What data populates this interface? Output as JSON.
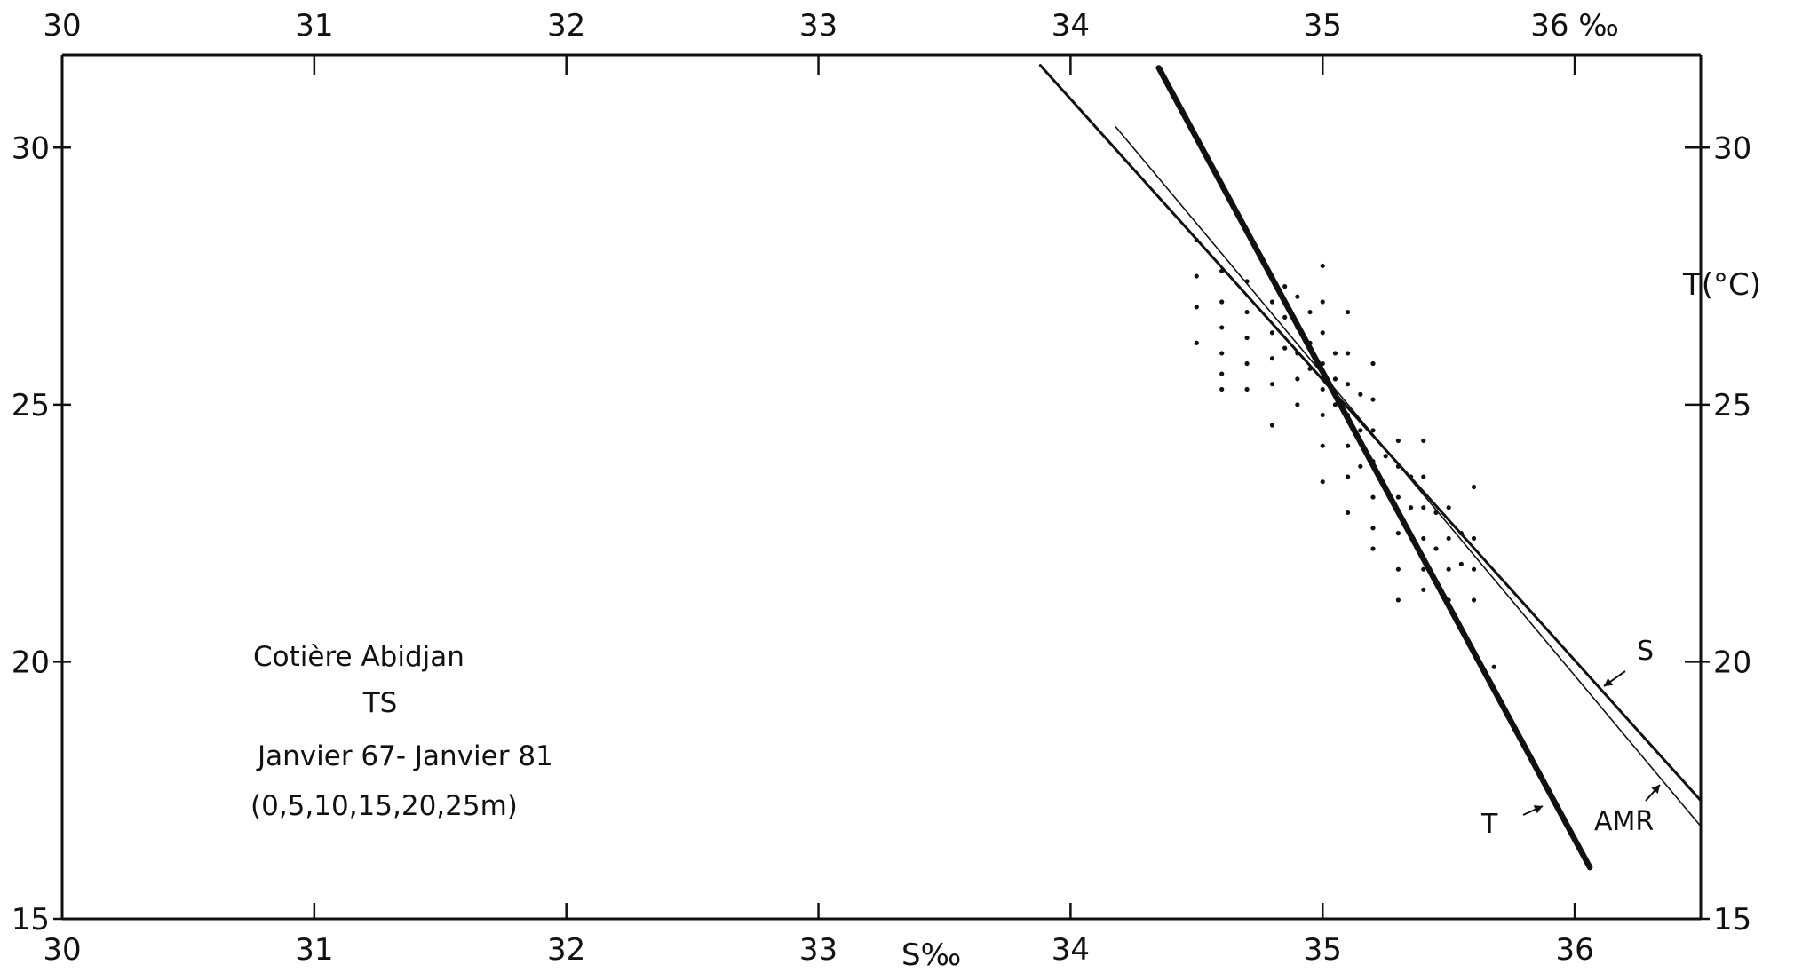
{
  "chart_data": {
    "type": "scatter",
    "title": "",
    "caption_lines": [
      "Cotière Abidjan",
      "TS",
      "Janvier 67- Janvier 81",
      "(0,5,10,15,20,25m)"
    ],
    "xlabel": "S‰",
    "ylabel_right": "T(°C)",
    "xlim": [
      30,
      36.5
    ],
    "ylim": [
      15,
      31.8
    ],
    "x_ticks_bottom": [
      {
        "v": 30,
        "label": "30"
      },
      {
        "v": 31,
        "label": "31"
      },
      {
        "v": 32,
        "label": "32"
      },
      {
        "v": 33,
        "label": "33"
      },
      {
        "v": 34,
        "label": "34"
      },
      {
        "v": 35,
        "label": "35"
      },
      {
        "v": 36,
        "label": "36"
      }
    ],
    "x_ticks_top": [
      {
        "v": 30,
        "label": "30"
      },
      {
        "v": 31,
        "label": "31"
      },
      {
        "v": 32,
        "label": "32"
      },
      {
        "v": 33,
        "label": "33"
      },
      {
        "v": 34,
        "label": "34"
      },
      {
        "v": 35,
        "label": "35"
      },
      {
        "v": 36,
        "label": "36 ‰"
      }
    ],
    "y_ticks_left": [
      {
        "v": 15,
        "label": "15"
      },
      {
        "v": 20,
        "label": "20"
      },
      {
        "v": 25,
        "label": "25"
      },
      {
        "v": 30,
        "label": "30"
      }
    ],
    "y_ticks_right": [
      {
        "v": 15,
        "label": "15"
      },
      {
        "v": 20,
        "label": "20"
      },
      {
        "v": 25,
        "label": "25"
      },
      {
        "v": 30,
        "label": "30"
      }
    ],
    "grid": false,
    "series": [
      {
        "name": "S",
        "type": "line",
        "weight": "medium",
        "x": [
          33.88,
          36.5
        ],
        "y": [
          31.6,
          17.3
        ]
      },
      {
        "name": "AMR",
        "type": "line",
        "weight": "thin",
        "x": [
          34.18,
          36.5
        ],
        "y": [
          30.4,
          16.8
        ]
      },
      {
        "name": "T",
        "type": "line",
        "weight": "bold",
        "x": [
          34.35,
          36.06
        ],
        "y": [
          31.55,
          16.0
        ]
      },
      {
        "type": "scatter",
        "points": [
          [
            34.5,
            28.2
          ],
          [
            34.5,
            27.5
          ],
          [
            34.5,
            26.9
          ],
          [
            34.5,
            26.2
          ],
          [
            34.6,
            27.6
          ],
          [
            34.6,
            27.0
          ],
          [
            34.6,
            26.5
          ],
          [
            34.6,
            26.0
          ],
          [
            34.6,
            25.6
          ],
          [
            34.6,
            25.3
          ],
          [
            34.7,
            27.4
          ],
          [
            34.7,
            26.8
          ],
          [
            34.7,
            26.3
          ],
          [
            34.7,
            25.8
          ],
          [
            34.7,
            25.3
          ],
          [
            34.8,
            27.0
          ],
          [
            34.8,
            26.4
          ],
          [
            34.8,
            25.9
          ],
          [
            34.8,
            25.4
          ],
          [
            34.8,
            24.6
          ],
          [
            34.85,
            27.3
          ],
          [
            34.85,
            26.7
          ],
          [
            34.85,
            26.1
          ],
          [
            34.9,
            27.1
          ],
          [
            34.9,
            26.5
          ],
          [
            34.9,
            26.0
          ],
          [
            34.9,
            25.5
          ],
          [
            34.9,
            25.0
          ],
          [
            34.95,
            26.8
          ],
          [
            34.95,
            26.2
          ],
          [
            34.95,
            25.7
          ],
          [
            35.0,
            27.7
          ],
          [
            35.0,
            27.0
          ],
          [
            35.0,
            26.4
          ],
          [
            35.0,
            25.8
          ],
          [
            35.0,
            25.3
          ],
          [
            35.0,
            24.8
          ],
          [
            35.0,
            24.2
          ],
          [
            35.0,
            23.5
          ],
          [
            35.05,
            26.0
          ],
          [
            35.05,
            25.5
          ],
          [
            35.05,
            25.0
          ],
          [
            35.1,
            26.8
          ],
          [
            35.1,
            26.0
          ],
          [
            35.1,
            25.4
          ],
          [
            35.1,
            24.8
          ],
          [
            35.1,
            24.2
          ],
          [
            35.1,
            23.6
          ],
          [
            35.1,
            22.9
          ],
          [
            35.15,
            25.2
          ],
          [
            35.15,
            24.5
          ],
          [
            35.15,
            23.8
          ],
          [
            35.2,
            25.8
          ],
          [
            35.2,
            25.1
          ],
          [
            35.2,
            24.5
          ],
          [
            35.2,
            23.9
          ],
          [
            35.2,
            23.2
          ],
          [
            35.2,
            22.6
          ],
          [
            35.2,
            22.2
          ],
          [
            35.25,
            24.0
          ],
          [
            35.25,
            23.4
          ],
          [
            35.3,
            24.3
          ],
          [
            35.3,
            23.8
          ],
          [
            35.3,
            23.2
          ],
          [
            35.3,
            22.5
          ],
          [
            35.3,
            21.8
          ],
          [
            35.3,
            21.2
          ],
          [
            35.35,
            23.6
          ],
          [
            35.35,
            23.0
          ],
          [
            35.4,
            24.3
          ],
          [
            35.4,
            23.6
          ],
          [
            35.4,
            23.0
          ],
          [
            35.4,
            22.4
          ],
          [
            35.4,
            21.8
          ],
          [
            35.4,
            21.4
          ],
          [
            35.45,
            22.9
          ],
          [
            35.45,
            22.2
          ],
          [
            35.5,
            23.0
          ],
          [
            35.5,
            22.4
          ],
          [
            35.5,
            21.8
          ],
          [
            35.5,
            21.2
          ],
          [
            35.55,
            22.5
          ],
          [
            35.55,
            21.9
          ],
          [
            35.6,
            23.4
          ],
          [
            35.6,
            22.4
          ],
          [
            35.6,
            21.8
          ],
          [
            35.6,
            21.2
          ],
          [
            35.68,
            19.9
          ]
        ]
      }
    ]
  }
}
